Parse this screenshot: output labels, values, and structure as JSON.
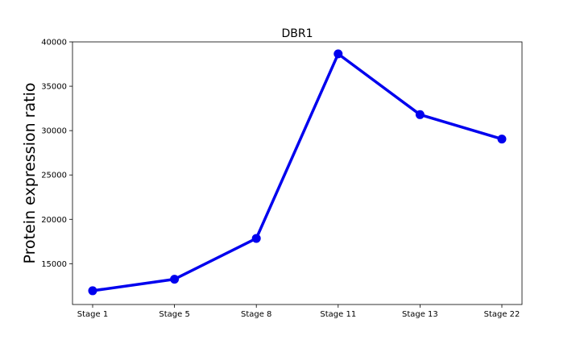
{
  "chart_data": {
    "type": "line",
    "title": "DBR1",
    "xlabel": "",
    "ylabel": "Protein expression ratio",
    "categories": [
      "Stage 1",
      "Stage 5",
      "Stage 8",
      "Stage 11",
      "Stage 13",
      "Stage 22"
    ],
    "series": [
      {
        "values": [
          11950,
          13250,
          17850,
          38650,
          31800,
          29050
        ],
        "color": "#0000ee"
      }
    ],
    "yticks": [
      15000,
      20000,
      25000,
      30000,
      35000,
      40000
    ],
    "ylim": [
      10400,
      40000
    ],
    "grid": false,
    "legend": false
  }
}
